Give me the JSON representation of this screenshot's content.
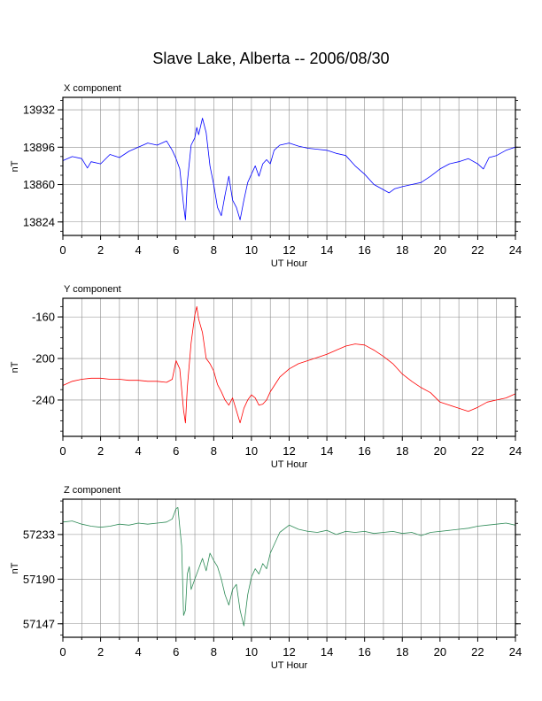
{
  "title": "Slave Lake, Alberta -- 2006/08/30",
  "chart_data": [
    {
      "type": "line",
      "title": "X component",
      "xlabel": "UT Hour",
      "ylabel": "nT",
      "color": "#0000ff",
      "xlim": [
        0,
        24
      ],
      "ylim": [
        13811,
        13944
      ],
      "xticks": [
        "0",
        "2",
        "4",
        "6",
        "8",
        "10",
        "12",
        "14",
        "16",
        "18",
        "20",
        "22",
        "24"
      ],
      "yticks": [
        "13824",
        "13860",
        "13896",
        "13932"
      ],
      "grid": true,
      "series": [
        {
          "x": [
            0,
            0.5,
            1,
            1.3,
            1.5,
            2,
            2.5,
            3,
            3.5,
            4,
            4.5,
            5,
            5.5,
            5.8,
            6,
            6.2,
            6.4,
            6.5,
            6.6,
            6.8,
            7,
            7.1,
            7.2,
            7.4,
            7.6,
            7.8,
            8,
            8.2,
            8.4,
            8.6,
            8.8,
            9,
            9.2,
            9.4,
            9.6,
            9.8,
            10,
            10.2,
            10.4,
            10.6,
            10.8,
            11,
            11.2,
            11.5,
            12,
            12.5,
            13,
            13.5,
            14,
            14.5,
            15,
            15.5,
            16,
            16.5,
            17,
            17.3,
            17.6,
            18,
            18.5,
            19,
            19.5,
            20,
            20.5,
            21,
            21.5,
            22,
            22.3,
            22.6,
            23,
            23.5,
            24
          ],
          "y": [
            13883,
            13887,
            13885,
            13876,
            13882,
            13880,
            13889,
            13886,
            13892,
            13896,
            13900,
            13898,
            13902,
            13893,
            13885,
            13875,
            13840,
            13826,
            13862,
            13898,
            13905,
            13915,
            13908,
            13924,
            13910,
            13878,
            13860,
            13838,
            13830,
            13850,
            13868,
            13845,
            13838,
            13826,
            13845,
            13862,
            13870,
            13878,
            13868,
            13880,
            13884,
            13880,
            13893,
            13898,
            13900,
            13897,
            13895,
            13894,
            13893,
            13890,
            13888,
            13878,
            13870,
            13860,
            13855,
            13852,
            13856,
            13858,
            13860,
            13862,
            13868,
            13875,
            13880,
            13882,
            13885,
            13880,
            13875,
            13886,
            13888,
            13893,
            13896
          ]
        }
      ]
    },
    {
      "type": "line",
      "title": "Y component",
      "xlabel": "UT Hour",
      "ylabel": "nT",
      "color": "#ff0000",
      "xlim": [
        0,
        24
      ],
      "ylim": [
        -275,
        -142
      ],
      "xticks": [
        "0",
        "2",
        "4",
        "6",
        "8",
        "10",
        "12",
        "14",
        "16",
        "18",
        "20",
        "22",
        "24"
      ],
      "yticks": [
        "-160",
        "-200",
        "-240"
      ],
      "grid": true,
      "series": [
        {
          "x": [
            0,
            0.5,
            1,
            1.5,
            2,
            2.5,
            3,
            3.5,
            4,
            4.5,
            5,
            5.5,
            5.8,
            6,
            6.2,
            6.4,
            6.5,
            6.6,
            6.8,
            7,
            7.1,
            7.2,
            7.4,
            7.6,
            7.8,
            8,
            8.2,
            8.4,
            8.6,
            8.8,
            9,
            9.2,
            9.4,
            9.6,
            9.8,
            10,
            10.2,
            10.4,
            10.6,
            10.8,
            11,
            11.5,
            12,
            12.5,
            13,
            13.5,
            14,
            14.5,
            15,
            15.5,
            16,
            16.5,
            17,
            17.5,
            18,
            18.5,
            19,
            19.5,
            20,
            20.5,
            21,
            21.5,
            22,
            22.5,
            23,
            23.5,
            24
          ],
          "y": [
            -226,
            -222,
            -220,
            -219,
            -219,
            -220,
            -220,
            -221,
            -221,
            -222,
            -222,
            -223,
            -220,
            -202,
            -210,
            -250,
            -262,
            -228,
            -185,
            -158,
            -150,
            -162,
            -175,
            -200,
            -205,
            -212,
            -225,
            -232,
            -240,
            -245,
            -238,
            -250,
            -262,
            -248,
            -240,
            -235,
            -238,
            -245,
            -244,
            -240,
            -232,
            -218,
            -210,
            -205,
            -202,
            -199,
            -196,
            -192,
            -188,
            -186,
            -187,
            -192,
            -198,
            -205,
            -215,
            -222,
            -228,
            -233,
            -242,
            -245,
            -248,
            -251,
            -247,
            -242,
            -240,
            -238,
            -234
          ]
        }
      ]
    },
    {
      "type": "line",
      "title": "Z component",
      "xlabel": "UT Hour",
      "ylabel": "nT",
      "color": "#2e8b57",
      "xlim": [
        0,
        24
      ],
      "ylim": [
        57134,
        57267
      ],
      "xticks": [
        "0",
        "2",
        "4",
        "6",
        "8",
        "10",
        "12",
        "14",
        "16",
        "18",
        "20",
        "22",
        "24"
      ],
      "yticks": [
        "57147",
        "57190",
        "57233"
      ],
      "grid": true,
      "series": [
        {
          "x": [
            0,
            0.5,
            1,
            1.5,
            2,
            2.5,
            3,
            3.5,
            4,
            4.5,
            5,
            5.5,
            5.8,
            6,
            6.1,
            6.2,
            6.3,
            6.4,
            6.5,
            6.6,
            6.7,
            6.8,
            7,
            7.2,
            7.4,
            7.6,
            7.8,
            8,
            8.2,
            8.4,
            8.6,
            8.8,
            9,
            9.2,
            9.4,
            9.6,
            9.8,
            10,
            10.2,
            10.4,
            10.6,
            10.8,
            11,
            11.5,
            12,
            12.5,
            13,
            13.5,
            14,
            14.5,
            15,
            15.5,
            16,
            16.5,
            17,
            17.5,
            18,
            18.5,
            19,
            19.5,
            20,
            20.5,
            21,
            21.5,
            22,
            22.5,
            23,
            23.5,
            24
          ],
          "y": [
            57245,
            57246,
            57243,
            57241,
            57240,
            57241,
            57243,
            57242,
            57244,
            57243,
            57244,
            57245,
            57248,
            57258,
            57259,
            57240,
            57222,
            57155,
            57160,
            57195,
            57202,
            57180,
            57190,
            57200,
            57210,
            57198,
            57215,
            57208,
            57202,
            57190,
            57175,
            57165,
            57180,
            57185,
            57160,
            57145,
            57175,
            57192,
            57200,
            57195,
            57205,
            57200,
            57215,
            57235,
            57242,
            57238,
            57236,
            57235,
            57237,
            57233,
            57236,
            57235,
            57236,
            57234,
            57235,
            57236,
            57234,
            57235,
            57232,
            57235,
            57236,
            57237,
            57238,
            57239,
            57241,
            57242,
            57243,
            57244,
            57242
          ]
        }
      ]
    }
  ]
}
